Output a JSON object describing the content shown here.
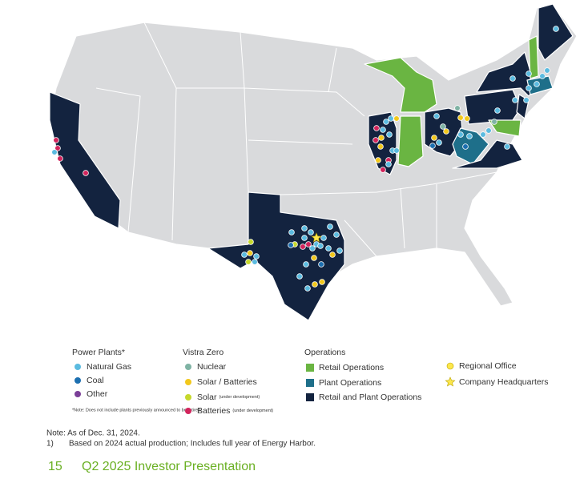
{
  "legend": [
    {
      "title": "Power Plants*",
      "items": [
        {
          "label": "Natural Gas",
          "color": "#5bbbe0"
        },
        {
          "label": "Coal",
          "color": "#1c6fb0"
        },
        {
          "label": "Other",
          "color": "#7b3f98"
        }
      ],
      "note": "*Note: Does not include plants previously announced to be retired."
    },
    {
      "title": "Vistra Zero",
      "items": [
        {
          "label": "Nuclear",
          "color": "#7fb3a4"
        },
        {
          "label": "Solar / Batteries",
          "color": "#f2c81c"
        },
        {
          "label": "Solar",
          "sub": "(under development)",
          "color": "#c6d82c"
        },
        {
          "label": "Batteries",
          "sub": "(under development)",
          "color": "#d2245c"
        }
      ]
    },
    {
      "title": "Operations",
      "items": [
        {
          "label": "Retail Operations",
          "color": "#6ab542"
        },
        {
          "label": "Plant Operations",
          "color": "#1e6f8a"
        },
        {
          "label": "Retail and Plant Operations",
          "color": "#13233f"
        }
      ]
    },
    {
      "items": [
        {
          "label": "Regional Office",
          "color": "#fde74c"
        },
        {
          "label": "Company Headquarters",
          "color": "#fde74c"
        }
      ]
    }
  ],
  "notes": {
    "as_of": "Note: As of Dec. 31, 2024.",
    "footnote_marker": "1)",
    "footnote": "Based on 2024 actual production; Includes full year of Energy Harbor."
  },
  "footer": {
    "page": "15",
    "title": "Q2 2025 Investor Presentation"
  }
}
